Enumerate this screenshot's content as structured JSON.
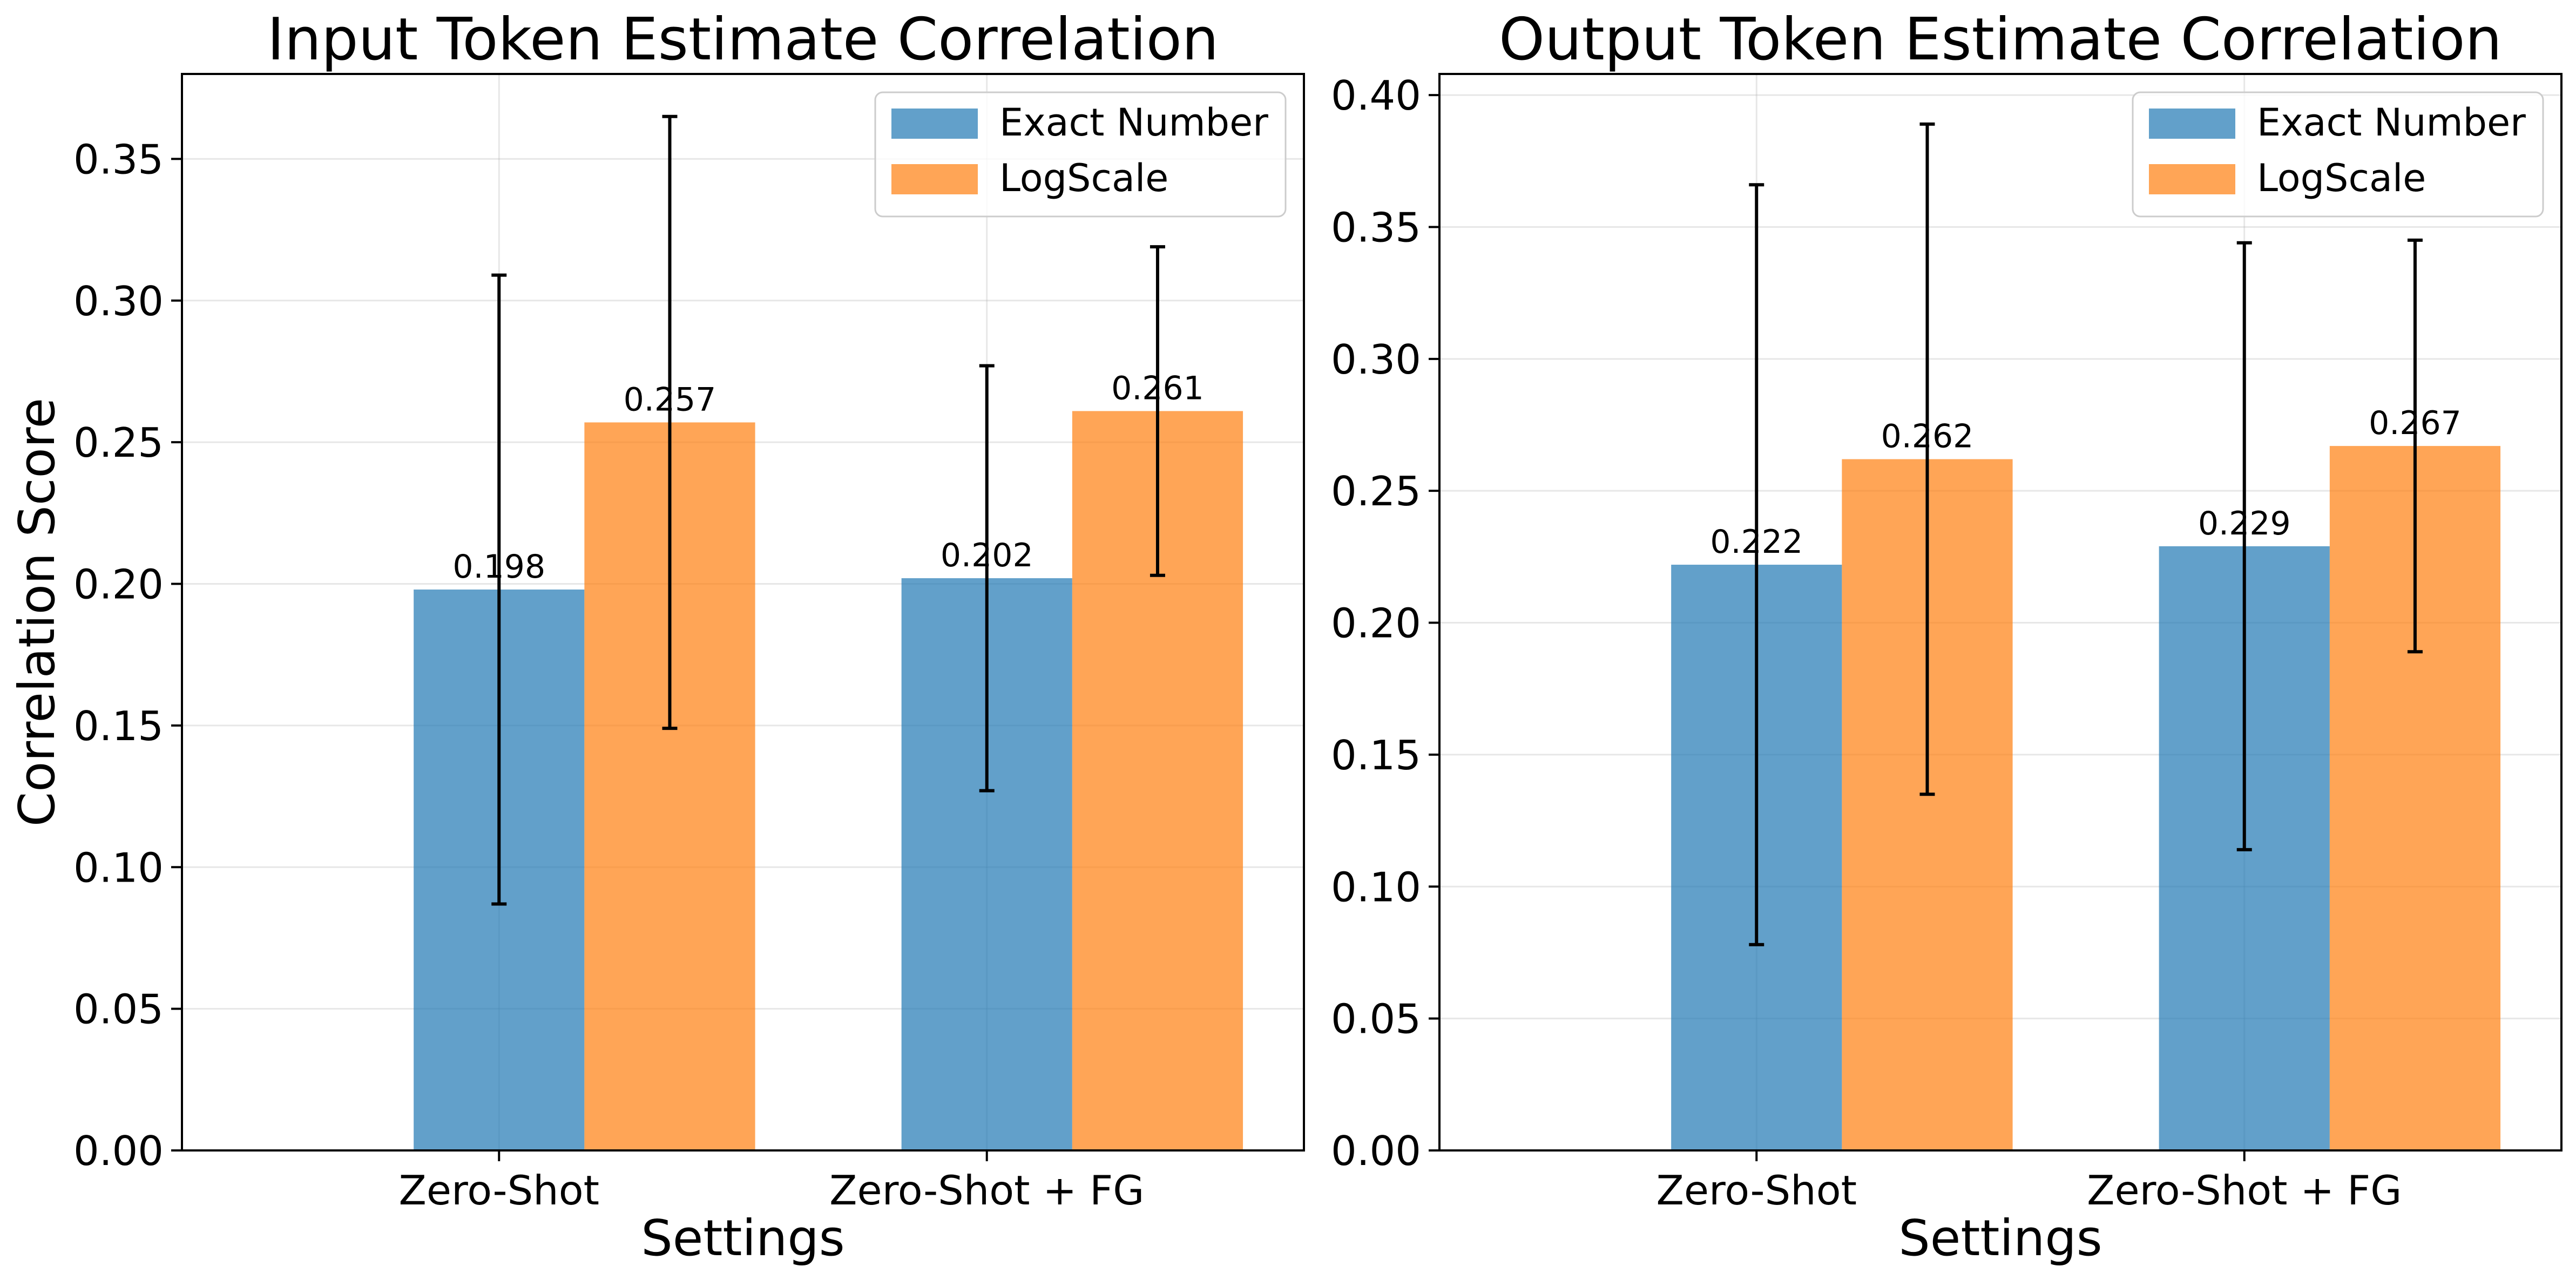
{
  "colors": {
    "Exact Number": "#1f77b4",
    "LogScale": "#ff7f0e",
    "bar_alpha": 0.7
  },
  "legend": {
    "placement": "upper right",
    "entries": [
      "Exact Number",
      "LogScale"
    ]
  },
  "chart_data": [
    {
      "type": "bar",
      "title": "Input Token Estimate Correlation",
      "xlabel": "Settings",
      "ylabel": "Correlation Score",
      "categories": [
        "Zero-Shot",
        "Zero-Shot + FG"
      ],
      "ylim": [
        0,
        0.38
      ],
      "yticks": [
        0.0,
        0.05,
        0.1,
        0.15,
        0.2,
        0.25,
        0.3,
        0.35
      ],
      "grid": true,
      "legend": "upper right",
      "series": [
        {
          "name": "Exact Number",
          "values": [
            0.198,
            0.202
          ],
          "errors": [
            0.111,
            0.075
          ],
          "labels": [
            "0.198",
            "0.202"
          ]
        },
        {
          "name": "LogScale",
          "values": [
            0.257,
            0.261
          ],
          "errors": [
            0.108,
            0.058
          ],
          "labels": [
            "0.257",
            "0.261"
          ]
        }
      ]
    },
    {
      "type": "bar",
      "title": "Output Token Estimate Correlation",
      "xlabel": "Settings",
      "ylabel": "",
      "categories": [
        "Zero-Shot",
        "Zero-Shot + FG"
      ],
      "ylim": [
        0,
        0.408
      ],
      "yticks": [
        0.0,
        0.05,
        0.1,
        0.15,
        0.2,
        0.25,
        0.3,
        0.35,
        0.4
      ],
      "grid": true,
      "legend": "upper right",
      "series": [
        {
          "name": "Exact Number",
          "values": [
            0.222,
            0.229
          ],
          "errors": [
            0.144,
            0.115
          ],
          "labels": [
            "0.222",
            "0.229"
          ]
        },
        {
          "name": "LogScale",
          "values": [
            0.262,
            0.267
          ],
          "errors": [
            0.127,
            0.078
          ],
          "labels": [
            "0.262",
            "0.267"
          ]
        }
      ]
    }
  ]
}
